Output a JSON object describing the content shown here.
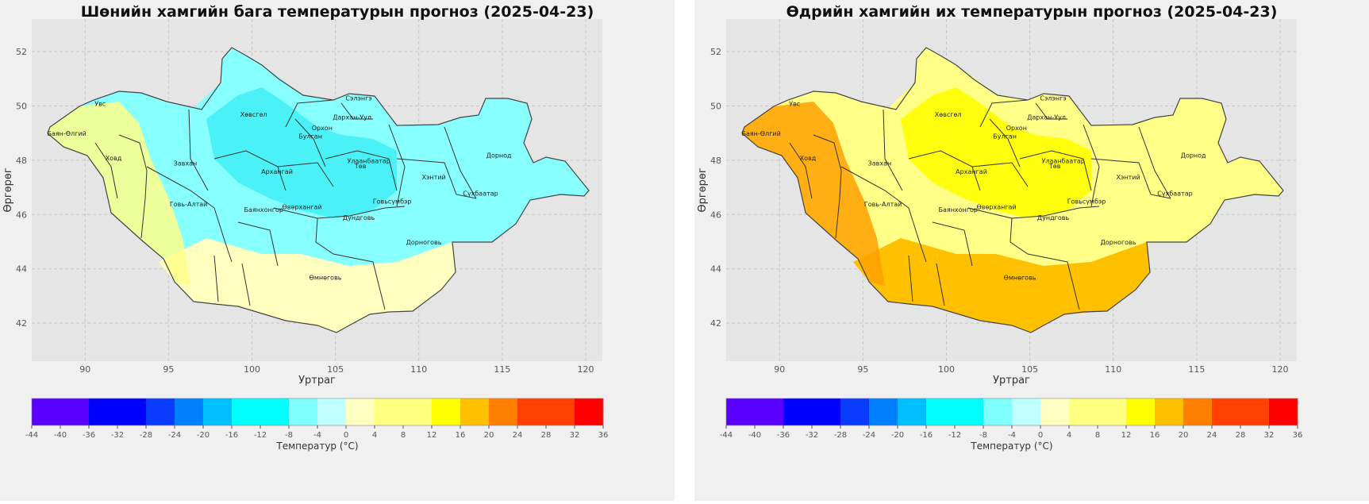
{
  "maps": [
    {
      "title": "Шөнийн хамгийн бага температурын прогноз (2025-04-23)",
      "fill_low": "#88ffff",
      "fill_mid": "#44f0f5",
      "fill_south": "#ffffc0",
      "fill_west": "#ffff88"
    },
    {
      "title": "Өдрийн хамгийн их температурын прогноз (2025-04-23)",
      "fill_low": "#ffff88",
      "fill_mid": "#ffff00",
      "fill_south": "#ffc000",
      "fill_west": "#ffa000"
    }
  ],
  "axes": {
    "xlabel": "Уртраг",
    "ylabel": "Өргөрөг",
    "x_ticks": [
      "90",
      "95",
      "100",
      "105",
      "110",
      "115",
      "120"
    ],
    "y_ticks": [
      "52",
      "50",
      "48",
      "46",
      "44",
      "42"
    ],
    "lon_range": [
      86.8,
      121
    ],
    "lat_range": [
      40.6,
      53.2
    ],
    "grid": true
  },
  "colorbar": {
    "label": "Температур (°C)",
    "ticks": [
      "-44",
      "-40",
      "-36",
      "-32",
      "-28",
      "-24",
      "-20",
      "-16",
      "-12",
      "-8",
      "-4",
      "0",
      "4",
      "8",
      "12",
      "16",
      "20",
      "24",
      "28",
      "32",
      "36"
    ],
    "colors": [
      "#5a00ff",
      "#5a00ff",
      "#0000ff",
      "#0000ff",
      "#0a3cff",
      "#0080ff",
      "#00bfff",
      "#00ffff",
      "#00ffff",
      "#80ffff",
      "#bfffff",
      "#ffffc0",
      "#ffff80",
      "#ffff80",
      "#ffff00",
      "#ffc000",
      "#ff8000",
      "#ff4000",
      "#ff4000",
      "#ff0000"
    ]
  },
  "provinces": [
    {
      "name": "Увс",
      "lon": 90.9,
      "lat": 50.0
    },
    {
      "name": "Баян-Өлгий",
      "lon": 88.9,
      "lat": 48.9
    },
    {
      "name": "Ховд",
      "lon": 91.7,
      "lat": 48.0
    },
    {
      "name": "Завхан",
      "lon": 96.0,
      "lat": 47.8
    },
    {
      "name": "Хөвсгөл",
      "lon": 100.1,
      "lat": 49.6
    },
    {
      "name": "Архангай",
      "lon": 101.5,
      "lat": 47.5
    },
    {
      "name": "Говь-Алтай",
      "lon": 96.2,
      "lat": 46.3
    },
    {
      "name": "Баянхонгор",
      "lon": 100.7,
      "lat": 46.1
    },
    {
      "name": "Өвөрхангай",
      "lon": 103.0,
      "lat": 46.2
    },
    {
      "name": "Булган",
      "lon": 103.5,
      "lat": 48.8
    },
    {
      "name": "Орхон",
      "lon": 104.2,
      "lat": 49.1
    },
    {
      "name": "Сэлэнгэ",
      "lon": 106.4,
      "lat": 50.2
    },
    {
      "name": "Дархан-Уул",
      "lon": 106.0,
      "lat": 49.5
    },
    {
      "name": "Улаанбаатар",
      "lon": 107.0,
      "lat": 47.9
    },
    {
      "name": "Төв",
      "lon": 106.5,
      "lat": 47.7
    },
    {
      "name": "Хэнтий",
      "lon": 110.9,
      "lat": 47.3
    },
    {
      "name": "Говьсүмбэр",
      "lon": 108.4,
      "lat": 46.4
    },
    {
      "name": "Дундговь",
      "lon": 106.4,
      "lat": 45.8
    },
    {
      "name": "Дорнод",
      "lon": 114.8,
      "lat": 48.1
    },
    {
      "name": "Сүхбаатар",
      "lon": 113.7,
      "lat": 46.7
    },
    {
      "name": "Дорноговь",
      "lon": 110.3,
      "lat": 44.9
    },
    {
      "name": "Өмнөговь",
      "lon": 104.4,
      "lat": 43.6
    }
  ]
}
